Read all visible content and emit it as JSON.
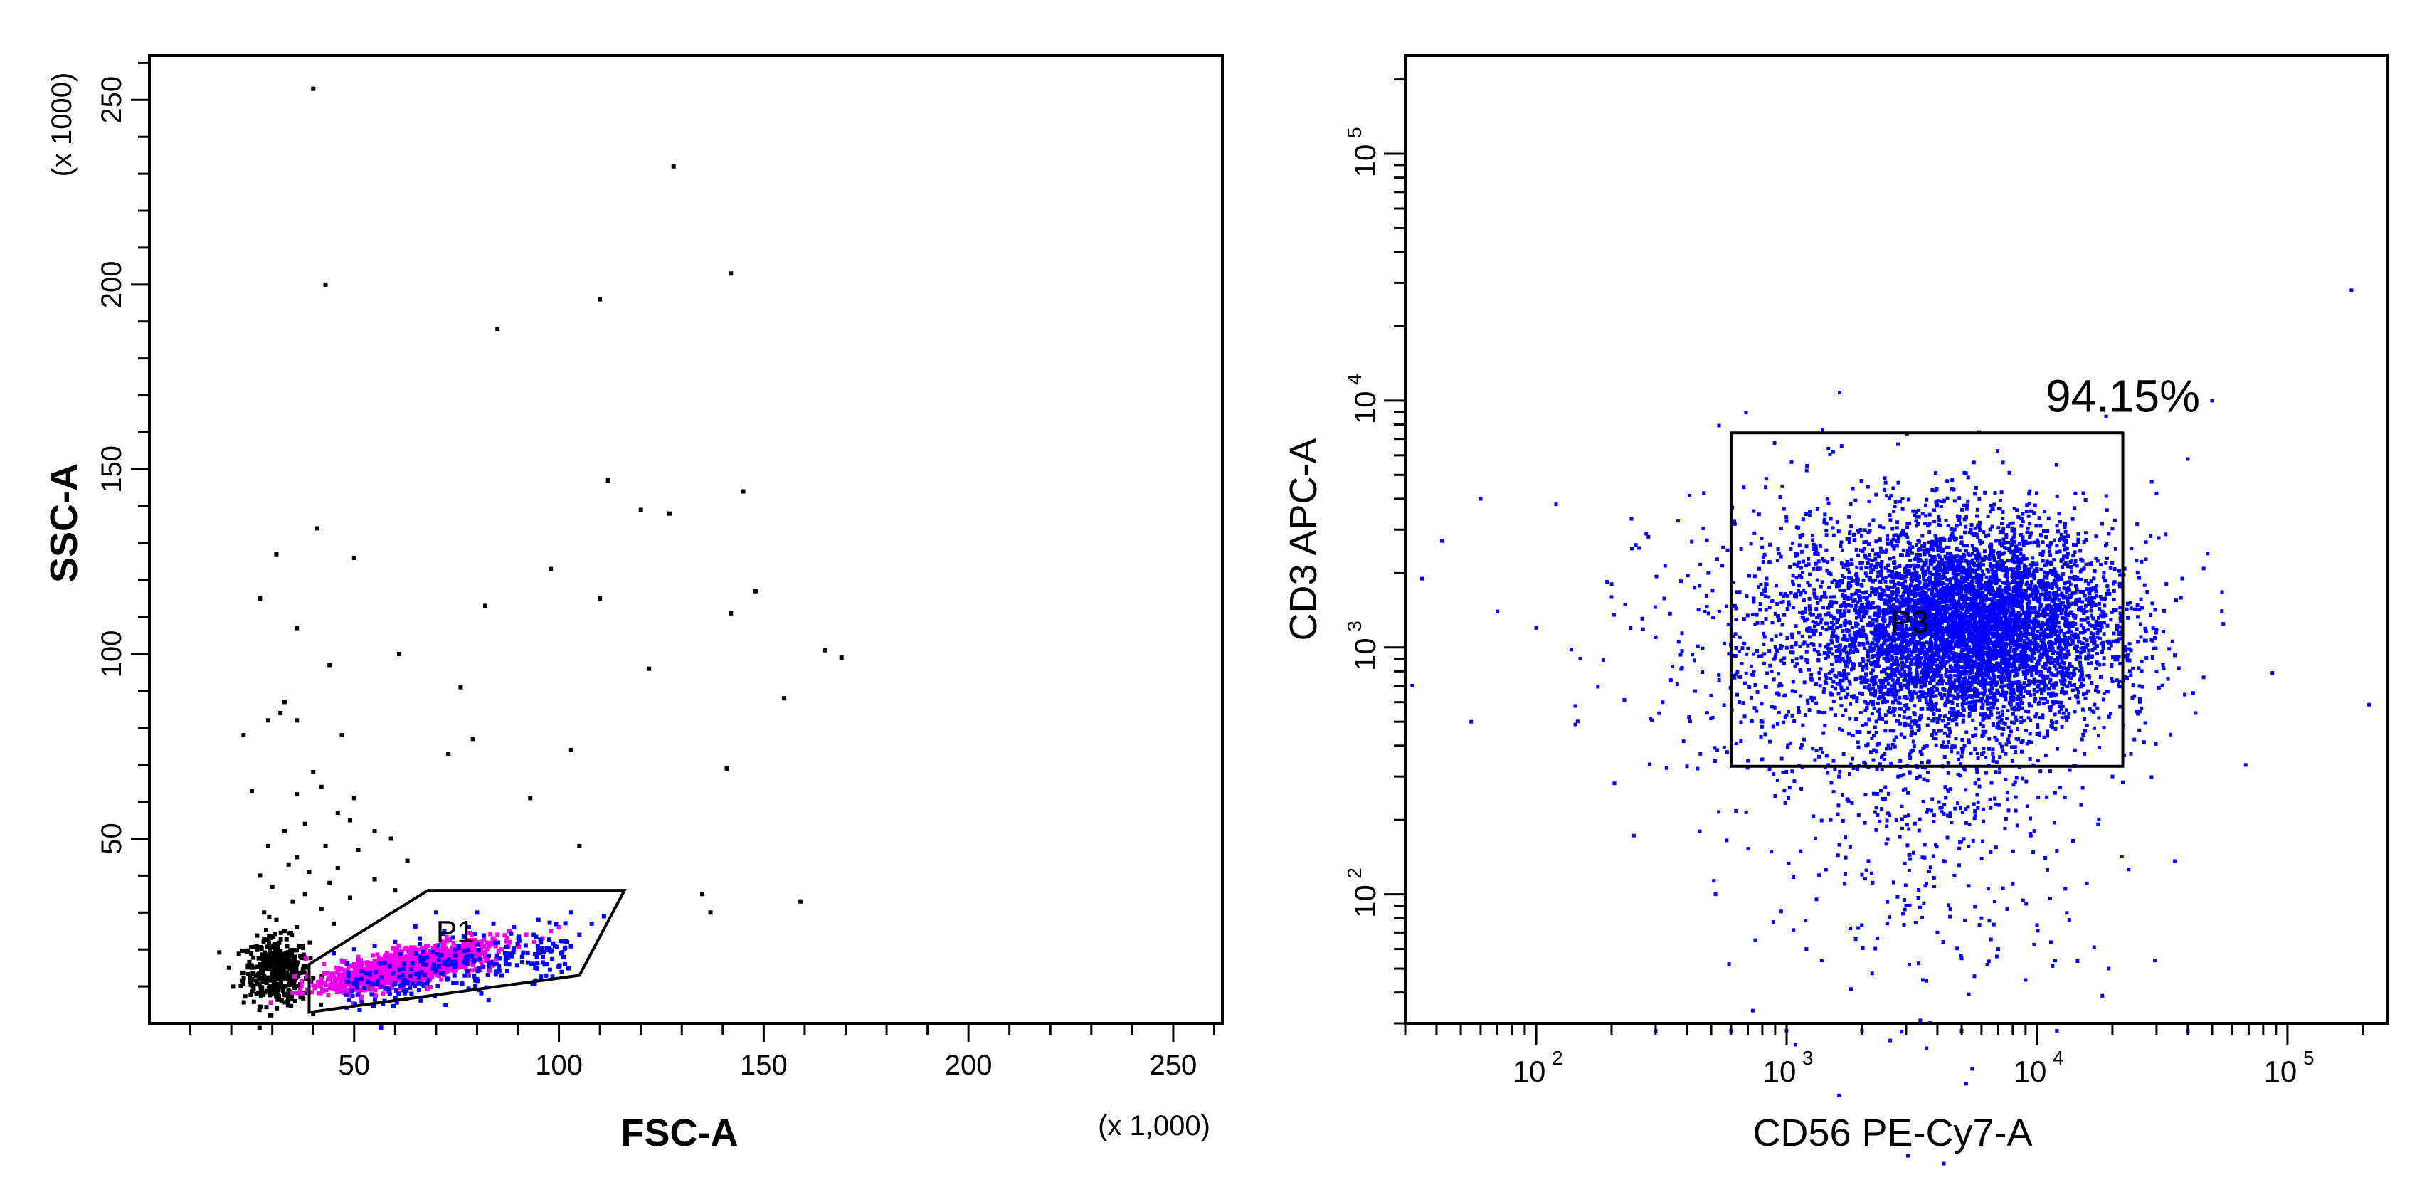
{
  "chart_data": [
    {
      "type": "scatter",
      "xlabel": "FSC-A",
      "ylabel": "SSC-A",
      "x_unit_label": "(x 1,000)",
      "y_unit_label": "(x 1000)",
      "xlim": [
        0,
        262
      ],
      "ylim": [
        0,
        262
      ],
      "x_scale": "linear",
      "y_scale": "linear",
      "x_ticks": [
        50,
        100,
        150,
        200,
        250
      ],
      "y_ticks": [
        50,
        100,
        150,
        200,
        250
      ],
      "grid": false,
      "gate": {
        "label": "P1",
        "shape": "polygon",
        "vertices": [
          [
            39,
            3
          ],
          [
            105,
            13
          ],
          [
            116,
            36
          ],
          [
            68,
            36
          ],
          [
            39,
            16
          ]
        ]
      },
      "series": [
        {
          "color": "#000000",
          "points": [
            [
              40,
              253
            ],
            [
              43,
              200
            ],
            [
              128,
              232
            ],
            [
              142,
              203
            ],
            [
              110,
              196
            ],
            [
              85,
              188
            ],
            [
              112,
              147
            ],
            [
              145,
              144
            ],
            [
              120,
              139
            ],
            [
              127,
              138
            ],
            [
              41,
              134
            ],
            [
              31,
              127
            ],
            [
              50,
              126
            ],
            [
              27,
              115
            ],
            [
              110,
              115
            ],
            [
              148,
              117
            ],
            [
              82,
              113
            ],
            [
              98,
              123
            ],
            [
              36,
              107
            ],
            [
              142,
              111
            ],
            [
              61,
              100
            ],
            [
              165,
              101
            ],
            [
              169,
              99
            ],
            [
              122,
              96
            ],
            [
              44,
              97
            ],
            [
              76,
              91
            ],
            [
              155,
              88
            ],
            [
              33,
              87
            ],
            [
              32,
              84
            ],
            [
              36,
              82
            ],
            [
              29,
              82
            ],
            [
              47,
              78
            ],
            [
              23,
              78
            ],
            [
              79,
              77
            ],
            [
              73,
              73
            ],
            [
              103,
              74
            ],
            [
              141,
              69
            ],
            [
              40,
              68
            ],
            [
              42,
              64
            ],
            [
              36,
              62
            ],
            [
              25,
              63
            ],
            [
              93,
              61
            ],
            [
              50,
              61
            ],
            [
              46,
              57
            ],
            [
              49,
              55
            ],
            [
              38,
              54
            ],
            [
              33,
              52
            ],
            [
              55,
              52
            ],
            [
              59,
              50
            ],
            [
              43,
              48
            ],
            [
              29,
              48
            ],
            [
              51,
              47
            ],
            [
              36,
              45
            ],
            [
              105,
              48
            ],
            [
              63,
              44
            ],
            [
              34,
              43
            ],
            [
              46,
              42
            ],
            [
              39,
              41
            ],
            [
              27,
              40
            ],
            [
              55,
              39
            ],
            [
              44,
              38
            ],
            [
              30,
              37
            ],
            [
              60,
              36
            ],
            [
              38,
              35
            ],
            [
              49,
              34
            ],
            [
              135,
              35
            ],
            [
              35,
              33
            ],
            [
              137,
              30
            ],
            [
              42,
              31
            ],
            [
              28,
              30
            ],
            [
              31,
              28
            ],
            [
              45,
              27
            ],
            [
              159,
              33
            ],
            [
              36,
              26
            ],
            [
              33,
              25
            ]
          ]
        },
        {
          "color": "#ee00ee",
          "points": [
            [
              46,
              15
            ],
            [
              48,
              14
            ],
            [
              50,
              16
            ],
            [
              52,
              13
            ],
            [
              54,
              15
            ],
            [
              55,
              17
            ],
            [
              57,
              14
            ],
            [
              58,
              16
            ],
            [
              60,
              13
            ],
            [
              61,
              18
            ],
            [
              62,
              15
            ],
            [
              63,
              17
            ],
            [
              64,
              14
            ],
            [
              65,
              19
            ],
            [
              66,
              16
            ],
            [
              67,
              13
            ],
            [
              68,
              17
            ],
            [
              69,
              15
            ],
            [
              70,
              18
            ],
            [
              71,
              16
            ],
            [
              72,
              14
            ],
            [
              73,
              19
            ],
            [
              74,
              17
            ],
            [
              75,
              21
            ],
            [
              76,
              18
            ],
            [
              77,
              16
            ],
            [
              78,
              20
            ],
            [
              79,
              17
            ],
            [
              80,
              22
            ],
            [
              81,
              19
            ],
            [
              82,
              18
            ],
            [
              83,
              21
            ],
            [
              84,
              23
            ],
            [
              86,
              20
            ],
            [
              88,
              22
            ],
            [
              90,
              21
            ],
            [
              92,
              24
            ],
            [
              94,
              22
            ],
            [
              96,
              23
            ],
            [
              98,
              25
            ],
            [
              53,
              12
            ],
            [
              56,
              11
            ],
            [
              59,
              12
            ],
            [
              62,
              11
            ],
            [
              65,
              12
            ],
            [
              49,
              12
            ],
            [
              51,
              18
            ],
            [
              47,
              17
            ],
            [
              58,
              19
            ],
            [
              63,
              20
            ],
            [
              68,
              21
            ],
            [
              72,
              22
            ],
            [
              85,
              24
            ],
            [
              100,
              26
            ]
          ]
        },
        {
          "color": "#0000ff",
          "points": [
            [
              44,
              12
            ],
            [
              47,
              10
            ],
            [
              52,
              9
            ],
            [
              57,
              10
            ],
            [
              62,
              9
            ],
            [
              67,
              10
            ],
            [
              73,
              12
            ],
            [
              78,
              13
            ],
            [
              83,
              15
            ],
            [
              87,
              17
            ],
            [
              91,
              18
            ],
            [
              95,
              19
            ],
            [
              99,
              21
            ],
            [
              102,
              22
            ],
            [
              105,
              24
            ],
            [
              108,
              27
            ],
            [
              111,
              29
            ],
            [
              95,
              28
            ],
            [
              89,
              26
            ],
            [
              84,
              27
            ],
            [
              78,
              26
            ],
            [
              72,
              25
            ],
            [
              66,
              23
            ],
            [
              60,
              22
            ],
            [
              55,
              21
            ],
            [
              50,
              20
            ],
            [
              45,
              19
            ],
            [
              70,
              30
            ],
            [
              80,
              30
            ],
            [
              75,
              11
            ],
            [
              64,
              8
            ],
            [
              86,
              13
            ],
            [
              103,
              30
            ],
            [
              97,
              16
            ]
          ]
        }
      ]
    },
    {
      "type": "scatter",
      "xlabel": "CD56 PE-Cy7-A",
      "ylabel": "CD3 APC-A",
      "x_scale": "log",
      "y_scale": "log",
      "xlim": [
        30,
        250000
      ],
      "ylim": [
        30,
        250000
      ],
      "x_ticks": [
        "10",
        "10",
        "10",
        "10"
      ],
      "x_tick_exponents": [
        "2",
        "3",
        "4",
        "5"
      ],
      "y_ticks": [
        "10",
        "10",
        "10",
        "10"
      ],
      "y_tick_exponents": [
        "2",
        "3",
        "4",
        "5"
      ],
      "grid": false,
      "gate": {
        "label": "P3",
        "shape": "rectangle",
        "percent_label": "94.15%",
        "x_range": [
          600,
          22000
        ],
        "y_range": [
          330,
          7400
        ]
      },
      "series": [
        {
          "color": "#0000ff",
          "main_population_center": [
            5500,
            1200
          ],
          "points": [
            [
              180000,
              28000
            ],
            [
              50000,
              10000
            ],
            [
              40000,
              5800
            ],
            [
              30000,
              4200
            ],
            [
              48000,
              2400
            ],
            [
              38000,
              1900
            ],
            [
              35,
              1900
            ],
            [
              42,
              2700
            ],
            [
              32,
              700
            ],
            [
              60,
              4000
            ],
            [
              70,
              1400
            ],
            [
              55,
              500
            ],
            [
              100,
              1200
            ],
            [
              120,
              3800
            ],
            [
              150,
              900
            ],
            [
              200,
              1600
            ],
            [
              250,
              2600
            ],
            [
              300,
              1100
            ],
            [
              320,
              600
            ],
            [
              400,
              330
            ],
            [
              450,
              180
            ],
            [
              520,
              100
            ],
            [
              800,
              500
            ],
            [
              900,
              250
            ],
            [
              1500,
              200
            ],
            [
              2000,
              120
            ],
            [
              2500,
              160
            ],
            [
              3000,
              90
            ],
            [
              4000,
              70
            ],
            [
              5000,
              55
            ],
            [
              6000,
              80
            ],
            [
              7000,
              60
            ],
            [
              8000,
              110
            ],
            [
              10000,
              75
            ],
            [
              12000,
              150
            ],
            [
              15000,
              230
            ],
            [
              20000,
              300
            ],
            [
              25000,
              550
            ],
            [
              30000,
              800
            ],
            [
              1200,
              60
            ],
            [
              3500,
              45
            ],
            [
              9000,
              45
            ],
            [
              600,
              28
            ],
            [
              300,
              28
            ],
            [
              1000,
              28
            ],
            [
              2000,
              28
            ],
            [
              5000,
              28
            ],
            [
              12000,
              28
            ],
            [
              40000,
              28
            ]
          ]
        }
      ]
    }
  ]
}
